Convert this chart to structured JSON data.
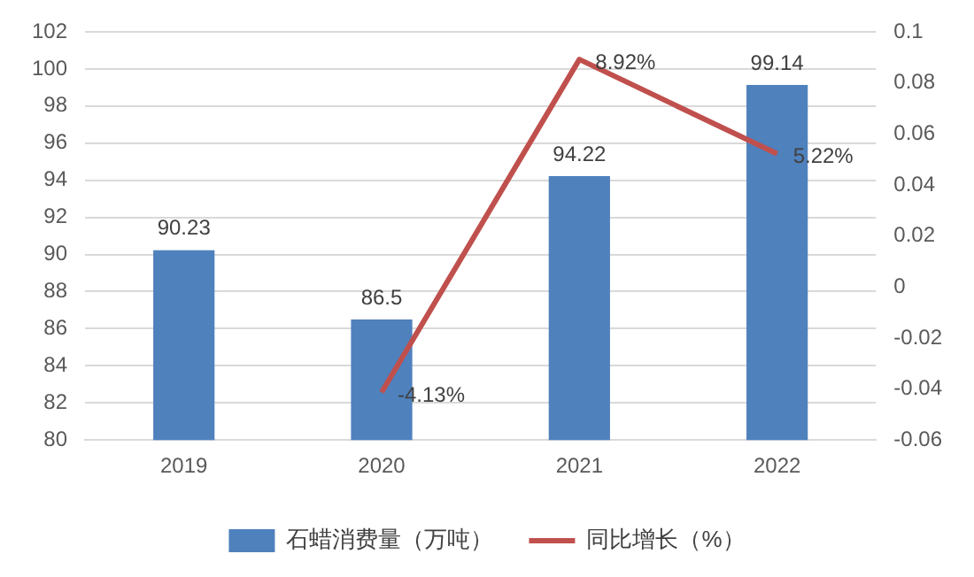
{
  "chart_data": {
    "type": "bar",
    "categories": [
      "2019",
      "2020",
      "2021",
      "2022"
    ],
    "series": [
      {
        "name": "石蜡消费量（万吨）",
        "color": "#4f81bd",
        "values": [
          90.23,
          86.5,
          94.22,
          99.14
        ],
        "value_labels": [
          "90.23",
          "86.5",
          "94.22",
          "99.14"
        ]
      },
      {
        "name": "同比增长（%）",
        "type": "line",
        "axis": "y2",
        "color": "#c0504d",
        "values": [
          null,
          -0.0413,
          0.0892,
          0.0522
        ],
        "value_labels": [
          null,
          "-4.13%",
          "8.92%",
          "5.22%"
        ]
      }
    ],
    "ylim": [
      80,
      102
    ],
    "yticks": [
      80,
      82,
      84,
      86,
      88,
      90,
      92,
      94,
      96,
      98,
      100,
      102
    ],
    "y2lim": [
      -0.06,
      0.1
    ],
    "y2ticks": [
      -0.06,
      -0.04,
      -0.02,
      0,
      0.02,
      0.04,
      0.06,
      0.08,
      0.1
    ],
    "grid": "y",
    "legend": "bottom",
    "marker": "none",
    "line_style": "solid"
  }
}
